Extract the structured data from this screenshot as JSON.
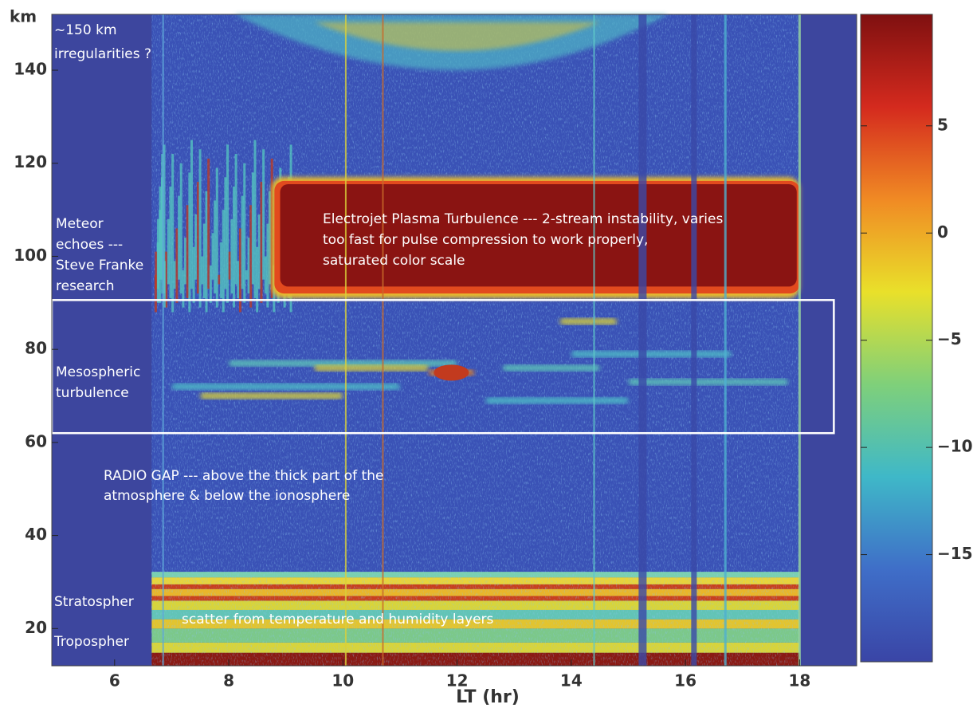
{
  "chart_data": {
    "type": "heatmap",
    "xlabel": "LT (hr)",
    "ylabel": "km",
    "xlim": [
      4.9,
      19
    ],
    "ylim": [
      12,
      152
    ],
    "xticks": [
      6,
      8,
      10,
      12,
      14,
      16,
      18
    ],
    "yticks": [
      20,
      40,
      60,
      80,
      100,
      120,
      140
    ],
    "clim": [
      -20,
      10.2
    ],
    "cticks": [
      5,
      0,
      {
        "value": -5,
        "label": "−5"
      },
      {
        "value": -10,
        "label": "−10"
      },
      {
        "value": -15,
        "label": "−15"
      }
    ],
    "colormap": [
      "#7f1010",
      "#d42a1e",
      "#f08a24",
      "#e9e02a",
      "#7fd07a",
      "#3fb8c8",
      "#3f6ec8",
      "#3a45a6"
    ],
    "annotations": [
      {
        "lines": [
          "~150 km",
          "irregularities ?"
        ]
      },
      {
        "lines": [
          "Meteor",
          "echoes ---",
          "Steve Franke",
          "research"
        ]
      },
      {
        "lines": [
          "Electrojet Plasma Turbulence --- 2-stream instability, varies",
          "too fast for pulse compression to work properly,",
          "saturated color scale"
        ]
      },
      {
        "lines": [
          "Mesospheric",
          "turbulence"
        ]
      },
      {
        "lines": [
          "RADIO GAP --- above the thick part of the",
          "atmosphere & below the ionosphere"
        ]
      },
      {
        "lines": [
          "Stratospher"
        ]
      },
      {
        "lines": [
          "scatter from temperature and humidity layers"
        ]
      },
      {
        "lines": [
          "Tropospher"
        ]
      }
    ]
  }
}
